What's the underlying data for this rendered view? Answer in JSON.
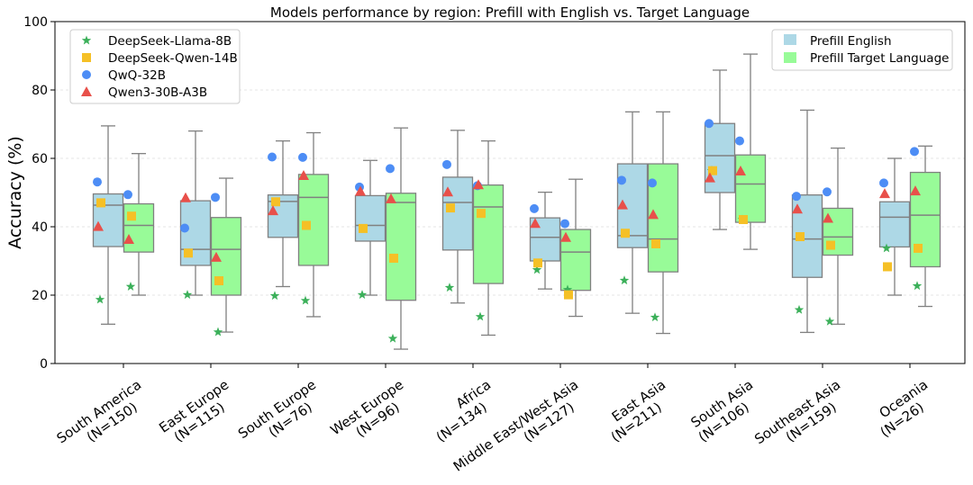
{
  "chart_data": {
    "type": "box",
    "title": "Models performance by region: Prefill with English vs. Target Language",
    "xlabel": "",
    "ylabel": "Accuracy (%)",
    "ylim": [
      0,
      100
    ],
    "yticks": [
      0,
      20,
      40,
      60,
      80,
      100
    ],
    "grid": "horizontal",
    "categories": [
      {
        "name": "South America",
        "n": "(N=150)"
      },
      {
        "name": "East Europe",
        "n": "(N=115)"
      },
      {
        "name": "South Europe",
        "n": "(N=76)"
      },
      {
        "name": "West Europe",
        "n": "(N=96)"
      },
      {
        "name": "Africa",
        "n": "(N=134)"
      },
      {
        "name": "Middle East/West Asia",
        "n": "(N=127)"
      },
      {
        "name": "East Asia",
        "n": "(N=211)"
      },
      {
        "name": "South Asia",
        "n": "(N=106)"
      },
      {
        "name": "Southeast Asia",
        "n": "(N=159)"
      },
      {
        "name": "Oceania",
        "n": "(N=26)"
      }
    ],
    "box_series": [
      {
        "name": "Prefill English",
        "color": "#add8e6",
        "boxes": [
          {
            "whislo": 11.5,
            "q1": 34.2,
            "med": 46.3,
            "q3": 49.6,
            "whishi": 69.5
          },
          {
            "whislo": 20.0,
            "q1": 28.7,
            "med": 33.4,
            "q3": 47.6,
            "whishi": 68.0
          },
          {
            "whislo": 22.5,
            "q1": 36.9,
            "med": 47.4,
            "q3": 49.3,
            "whishi": 65.1
          },
          {
            "whislo": 20.0,
            "q1": 35.8,
            "med": 40.4,
            "q3": 49.1,
            "whishi": 59.4
          },
          {
            "whislo": 17.7,
            "q1": 33.2,
            "med": 47.1,
            "q3": 54.5,
            "whishi": 68.2
          },
          {
            "whislo": 21.8,
            "q1": 30.0,
            "med": 36.9,
            "q3": 42.6,
            "whishi": 50.1
          },
          {
            "whislo": 14.7,
            "q1": 33.9,
            "med": 37.4,
            "q3": 58.4,
            "whishi": 73.6
          },
          {
            "whislo": 39.2,
            "q1": 50.0,
            "med": 60.8,
            "q3": 70.2,
            "whishi": 85.8
          },
          {
            "whislo": 9.1,
            "q1": 25.2,
            "med": 36.4,
            "q3": 49.3,
            "whishi": 74.1
          },
          {
            "whislo": 20.0,
            "q1": 34.1,
            "med": 42.8,
            "q3": 47.3,
            "whishi": 60.0
          }
        ]
      },
      {
        "name": "Prefill Target Language",
        "color": "#98fb98",
        "boxes": [
          {
            "whislo": 20.0,
            "q1": 32.6,
            "med": 40.4,
            "q3": 46.7,
            "whishi": 61.4
          },
          {
            "whislo": 9.2,
            "q1": 20.0,
            "med": 33.4,
            "q3": 42.7,
            "whishi": 54.2
          },
          {
            "whislo": 13.7,
            "q1": 28.7,
            "med": 48.6,
            "q3": 55.3,
            "whishi": 67.5
          },
          {
            "whislo": 4.2,
            "q1": 18.5,
            "med": 47.1,
            "q3": 49.8,
            "whishi": 68.9
          },
          {
            "whislo": 8.3,
            "q1": 23.4,
            "med": 45.8,
            "q3": 52.2,
            "whishi": 65.1
          },
          {
            "whislo": 13.8,
            "q1": 21.4,
            "med": 32.6,
            "q3": 39.2,
            "whishi": 53.9
          },
          {
            "whislo": 8.8,
            "q1": 26.8,
            "med": 36.4,
            "q3": 58.4,
            "whishi": 73.6
          },
          {
            "whislo": 33.4,
            "q1": 41.3,
            "med": 52.5,
            "q3": 61.0,
            "whishi": 90.5
          },
          {
            "whislo": 11.5,
            "q1": 31.7,
            "med": 37.0,
            "q3": 45.4,
            "whishi": 63.0
          },
          {
            "whislo": 16.7,
            "q1": 28.3,
            "med": 43.4,
            "q3": 55.9,
            "whishi": 63.6
          }
        ]
      }
    ],
    "point_series": [
      {
        "name": "DeepSeek-Llama-8B",
        "marker": "star",
        "color": "#3cb05a",
        "english": [
          18.7,
          20.1,
          19.8,
          20.1,
          22.2,
          27.4,
          24.3,
          56.4,
          15.7,
          33.7
        ],
        "target": [
          22.5,
          9.2,
          18.4,
          7.3,
          13.7,
          21.6,
          13.5,
          42.1,
          12.3,
          22.7
        ]
      },
      {
        "name": "DeepSeek-Qwen-14B",
        "marker": "square",
        "color": "#f5c026",
        "english": [
          47.0,
          32.3,
          47.3,
          39.5,
          45.5,
          29.4,
          38.1,
          56.4,
          37.1,
          28.3
        ],
        "target": [
          43.1,
          24.2,
          40.4,
          30.8,
          43.9,
          20.1,
          35.0,
          42.1,
          34.6,
          33.7
        ]
      },
      {
        "name": "QwQ-32B",
        "marker": "circle",
        "color": "#4d8df5",
        "english": [
          53.1,
          39.6,
          60.4,
          51.6,
          58.2,
          45.3,
          53.6,
          70.2,
          48.9,
          52.8
        ],
        "target": [
          49.4,
          48.6,
          60.3,
          57.0,
          52.0,
          40.9,
          52.8,
          65.1,
          50.2,
          62.0
        ]
      },
      {
        "name": "Qwen3-30B-A3B",
        "marker": "triangle",
        "color": "#e8504a",
        "english": [
          40.1,
          48.5,
          44.7,
          50.4,
          50.2,
          41.0,
          46.4,
          54.3,
          45.2,
          49.7
        ],
        "target": [
          36.3,
          31.1,
          55.0,
          48.2,
          52.3,
          36.9,
          43.6,
          56.3,
          42.5,
          50.5
        ]
      }
    ]
  }
}
